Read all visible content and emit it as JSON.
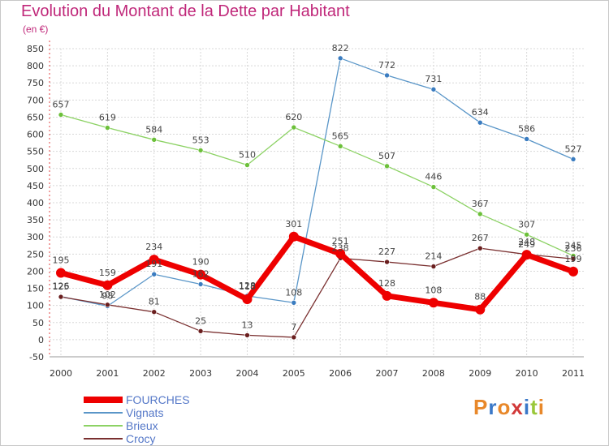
{
  "title": "Evolution du Montant de la Dette par Habitant",
  "unit": "(en €)",
  "logo": {
    "text": "Proxiti",
    "letter_colors": [
      "#e8882a",
      "#3a78c8",
      "#e8882a",
      "#d23a3a",
      "#3a78c8",
      "#9ac83a",
      "#e8882a"
    ]
  },
  "chart_data": {
    "type": "line",
    "title": "Evolution du Montant de la Dette par Habitant",
    "ylabel": "(en €)",
    "xlabel": "",
    "ylim": [
      -50,
      850
    ],
    "yticks": [
      -50,
      0,
      50,
      100,
      150,
      200,
      250,
      300,
      350,
      400,
      450,
      500,
      550,
      600,
      650,
      700,
      750,
      800,
      850
    ],
    "grid": true,
    "legend_position": "bottom-left",
    "x": [
      "2000",
      "2001",
      "2002",
      "2003",
      "2004",
      "2005",
      "2006",
      "2007",
      "2008",
      "2009",
      "2010",
      "2011"
    ],
    "series": [
      {
        "name": "Vignats",
        "color": "#5a96c8",
        "marker": "#3a7cc0",
        "values": [
          126,
          98,
          191,
          162,
          128,
          108,
          822,
          772,
          731,
          634,
          586,
          527
        ],
        "labels": [
          "126",
          "98",
          "191",
          "162",
          "128",
          "108",
          "822",
          "772",
          "731",
          "634",
          "586",
          "527"
        ]
      },
      {
        "name": "Brieux",
        "color": "#8cd264",
        "marker": "#6cc03a",
        "values": [
          657,
          619,
          584,
          553,
          510,
          620,
          565,
          507,
          446,
          367,
          307,
          245
        ],
        "labels": [
          "657",
          "619",
          "584",
          "553",
          "510",
          "620",
          "565",
          "507",
          "446",
          "367",
          "307",
          "245"
        ]
      },
      {
        "name": "Crocy",
        "color": "#7a3030",
        "marker": "#6a1e1e",
        "values": [
          125,
          102,
          81,
          25,
          13,
          7,
          238,
          227,
          214,
          267,
          249,
          236
        ],
        "labels": [
          "125",
          "102",
          "81",
          "25",
          "13",
          "7",
          "238",
          "227",
          "214",
          "267",
          "249",
          "236"
        ]
      },
      {
        "name": "FOURCHES",
        "color": "#ee0000",
        "marker": "#ee0000",
        "values": [
          195,
          159,
          234,
          190,
          118,
          301,
          251,
          128,
          108,
          88,
          248,
          199
        ],
        "labels": [
          "195",
          "159",
          "234",
          "190",
          "118",
          "301",
          "251",
          "128",
          "108",
          "88",
          "248",
          "199"
        ]
      }
    ],
    "legend": [
      "FOURCHES",
      "Vignats",
      "Brieux",
      "Crocy"
    ]
  }
}
